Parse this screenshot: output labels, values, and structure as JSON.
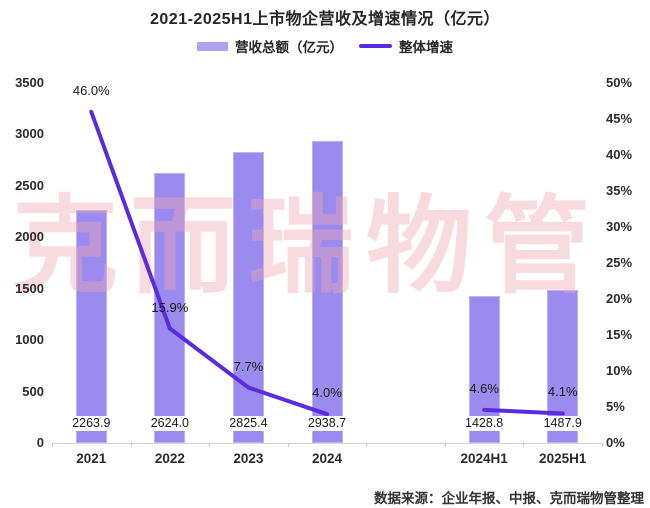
{
  "source_note": "数据来源：企业年报、中报、克而瑞物管整理",
  "watermark": {
    "text": "克而瑞物管"
  },
  "colors": {
    "bar": "#9C8BEE",
    "bar_legend_swatch": "#ADA2EC",
    "line": "#5B2BE0",
    "axis_line": "#D4D4D4",
    "watermark": "rgba(235,170,178,0.42)"
  },
  "chart_data": {
    "type": "combo",
    "title": "2021-2025H1上市物企营收及增速情况（亿元）",
    "categories": [
      "2021",
      "2022",
      "2023",
      "2024",
      "2024H1",
      "2025H1"
    ],
    "series": [
      {
        "name": "营收总额（亿元）",
        "type": "bar",
        "values": [
          2263.9,
          2624.0,
          2825.4,
          2938.7,
          1428.8,
          1487.9
        ],
        "labels": [
          "2263.9",
          "2624.0",
          "2825.4",
          "2938.7",
          "1428.8",
          "1487.9"
        ]
      },
      {
        "name": "整体增速",
        "type": "line",
        "unit": "%",
        "values": [
          46.0,
          15.9,
          7.7,
          4.0,
          4.6,
          4.1
        ],
        "labels": [
          "46.0%",
          "15.9%",
          "7.7%",
          "4.0%",
          "4.6%",
          "4.1%"
        ],
        "segments": [
          [
            0,
            1,
            2,
            3
          ],
          [
            4,
            5
          ]
        ]
      }
    ],
    "left_axis": {
      "min": 0,
      "max": 3500,
      "step": 500,
      "ticks": [
        "3500",
        "3000",
        "2500",
        "2000",
        "1500",
        "1000",
        "500",
        "0"
      ]
    },
    "right_axis": {
      "min": 0,
      "max": 50,
      "step": 5,
      "ticks": [
        "50%",
        "45%",
        "40%",
        "35%",
        "30%",
        "25%",
        "20%",
        "15%",
        "10%",
        "5%",
        "0%"
      ]
    },
    "legend_position": "top",
    "grid": false,
    "layout_hints": {
      "slot_count": 7,
      "category_slots": [
        0,
        1,
        2,
        3,
        5,
        6
      ]
    }
  }
}
